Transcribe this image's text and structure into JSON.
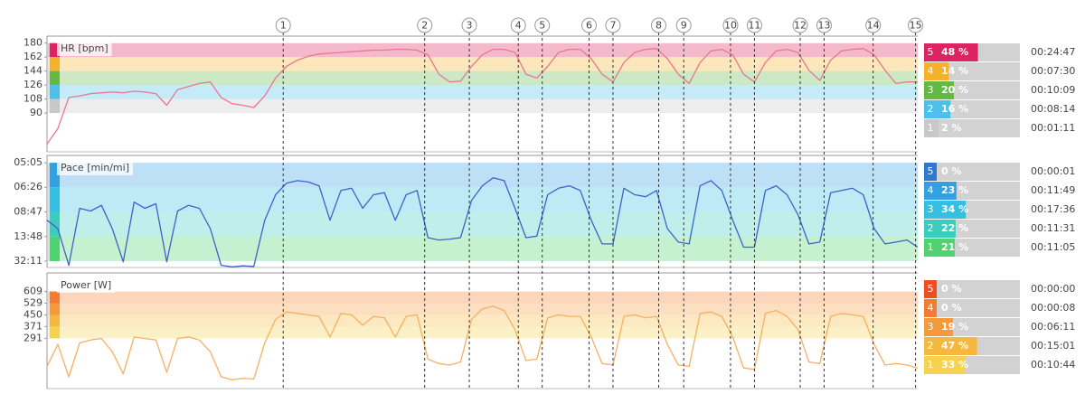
{
  "laps": {
    "labels": [
      1,
      2,
      3,
      4,
      5,
      6,
      7,
      8,
      9,
      10,
      11,
      12,
      13,
      14,
      15
    ],
    "x": [
      21.7,
      34.7,
      38.8,
      43.3,
      45.5,
      49.8,
      52.0,
      56.2,
      58.5,
      62.8,
      65.0,
      69.2,
      71.4,
      75.9,
      79.8
    ]
  },
  "chart_data": [
    {
      "type": "line",
      "title": "HR [bpm]",
      "color": "#e8778f",
      "xlim": [
        0,
        80
      ],
      "ylim": [
        40,
        189
      ],
      "yticks": [
        180,
        162,
        144,
        126,
        108,
        90
      ],
      "values": [
        50,
        70,
        110,
        112,
        115,
        116,
        117,
        116,
        118,
        117,
        115,
        100,
        120,
        124,
        128,
        130,
        110,
        102,
        100,
        97,
        112,
        135,
        150,
        158,
        163,
        166,
        167,
        168,
        169,
        170,
        171,
        171,
        172,
        172,
        171,
        165,
        140,
        130,
        131,
        150,
        165,
        172,
        172,
        168,
        140,
        135,
        150,
        168,
        172,
        172,
        160,
        140,
        130,
        155,
        168,
        172,
        173,
        160,
        140,
        128,
        155,
        170,
        172,
        165,
        140,
        130,
        155,
        170,
        172,
        168,
        145,
        132,
        158,
        170,
        172,
        173,
        165,
        145,
        128,
        130,
        130
      ],
      "zones": {
        "labels": [
          5,
          4,
          3,
          2,
          1
        ],
        "values": [
          48,
          14,
          20,
          16,
          2
        ],
        "value_labels": [
          "48 %",
          "14 %",
          "20 %",
          "16 %",
          "2 %"
        ],
        "times": [
          "00:24:47",
          "00:07:30",
          "00:10:09",
          "00:08:14",
          "00:01:11"
        ],
        "colors": [
          "#dd2463",
          "#f5b12b",
          "#62b946",
          "#4cc0e8",
          "#c8c8c8"
        ]
      }
    },
    {
      "type": "line",
      "title": "Pace [min/mi]",
      "color": "#3b63c9",
      "scale": "reciprocal",
      "xlim": [
        0,
        80
      ],
      "ylim": [
        2950,
        287
      ],
      "yticks": [
        {
          "value": 305,
          "label": "05:05"
        },
        {
          "value": 386,
          "label": "06:26"
        },
        {
          "value": 527,
          "label": "08:47"
        },
        {
          "value": 828,
          "label": "13:48"
        },
        {
          "value": 1931,
          "label": "32:11"
        }
      ],
      "values": [
        600,
        700,
        2500,
        500,
        520,
        480,
        700,
        2000,
        460,
        500,
        470,
        2000,
        520,
        480,
        500,
        700,
        2500,
        2800,
        2600,
        2700,
        600,
        420,
        370,
        360,
        365,
        380,
        600,
        400,
        390,
        500,
        420,
        410,
        600,
        420,
        400,
        850,
        900,
        880,
        850,
        450,
        380,
        350,
        360,
        500,
        850,
        820,
        420,
        390,
        380,
        400,
        600,
        1000,
        1000,
        390,
        420,
        430,
        400,
        700,
        950,
        1000,
        380,
        360,
        400,
        600,
        1100,
        1100,
        400,
        380,
        420,
        550,
        1000,
        950,
        410,
        400,
        390,
        420,
        700,
        1000,
        950,
        900,
        1100
      ],
      "zones": {
        "labels": [
          5,
          4,
          3,
          2,
          1
        ],
        "values": [
          0,
          23,
          34,
          22,
          21
        ],
        "value_labels": [
          "0 %",
          "23 %",
          "34 %",
          "22 %",
          "21 %"
        ],
        "times": [
          "00:00:01",
          "00:11:49",
          "00:17:36",
          "00:11:31",
          "00:11:05"
        ],
        "colors": [
          "#2f78d2",
          "#33a0e2",
          "#35bfe0",
          "#3ccbbf",
          "#4fd271"
        ]
      }
    },
    {
      "type": "line",
      "title": "Power [W]",
      "color": "#f6b061",
      "xlim": [
        0,
        80
      ],
      "ylim": [
        -50,
        735
      ],
      "yticks": [
        609,
        529,
        450,
        371,
        291
      ],
      "values": [
        100,
        250,
        30,
        260,
        280,
        290,
        200,
        50,
        300,
        290,
        280,
        60,
        290,
        300,
        280,
        200,
        30,
        10,
        20,
        15,
        260,
        420,
        470,
        460,
        450,
        440,
        300,
        460,
        450,
        380,
        440,
        430,
        300,
        440,
        450,
        150,
        120,
        110,
        130,
        420,
        490,
        510,
        480,
        350,
        140,
        150,
        430,
        450,
        440,
        440,
        300,
        120,
        110,
        440,
        450,
        430,
        440,
        250,
        110,
        100,
        460,
        470,
        440,
        300,
        90,
        80,
        460,
        480,
        440,
        350,
        130,
        120,
        440,
        460,
        450,
        440,
        250,
        110,
        120,
        110,
        90
      ],
      "zones": {
        "labels": [
          5,
          4,
          3,
          2,
          1
        ],
        "values": [
          0,
          0,
          19,
          47,
          33
        ],
        "value_labels": [
          "0 %",
          "0 %",
          "19 %",
          "47 %",
          "33 %"
        ],
        "times": [
          "00:00:00",
          "00:00:08",
          "00:06:11",
          "00:15:01",
          "00:10:44"
        ],
        "colors": [
          "#f04e1d",
          "#f47b30",
          "#f59a3a",
          "#f5b83f",
          "#f5d24f"
        ]
      }
    }
  ]
}
